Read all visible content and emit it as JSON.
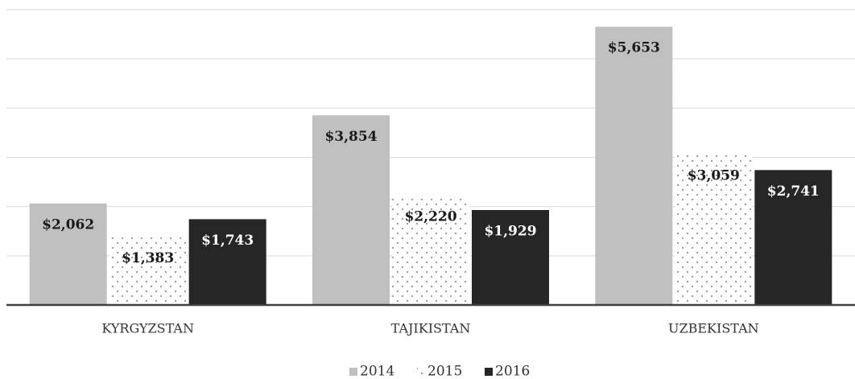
{
  "chart_data": {
    "type": "bar",
    "categories": [
      "KYRGYZSTAN",
      "TAJIKISTAN",
      "UZBEKISTAN"
    ],
    "series": [
      {
        "name": "2014",
        "color": "#c0c0c0",
        "values": [
          2062,
          3854,
          5653
        ],
        "value_labels": [
          "$2,062",
          "$3,854",
          "$5,653"
        ]
      },
      {
        "name": "2015",
        "color": "#555555",
        "values": [
          1383,
          2220,
          3059
        ],
        "value_labels": [
          "$1,383",
          "$2,220",
          "$3,059"
        ]
      },
      {
        "name": "2016",
        "color": "#262626",
        "values": [
          1743,
          1929,
          2741
        ],
        "value_labels": [
          "$1,743",
          "$1,929",
          "$2,741"
        ]
      }
    ],
    "ylim": [
      0,
      6000
    ],
    "yticks": [
      0,
      1000,
      2000,
      3000,
      4000,
      5000,
      6000
    ],
    "grid": true,
    "legend": "bottom"
  }
}
